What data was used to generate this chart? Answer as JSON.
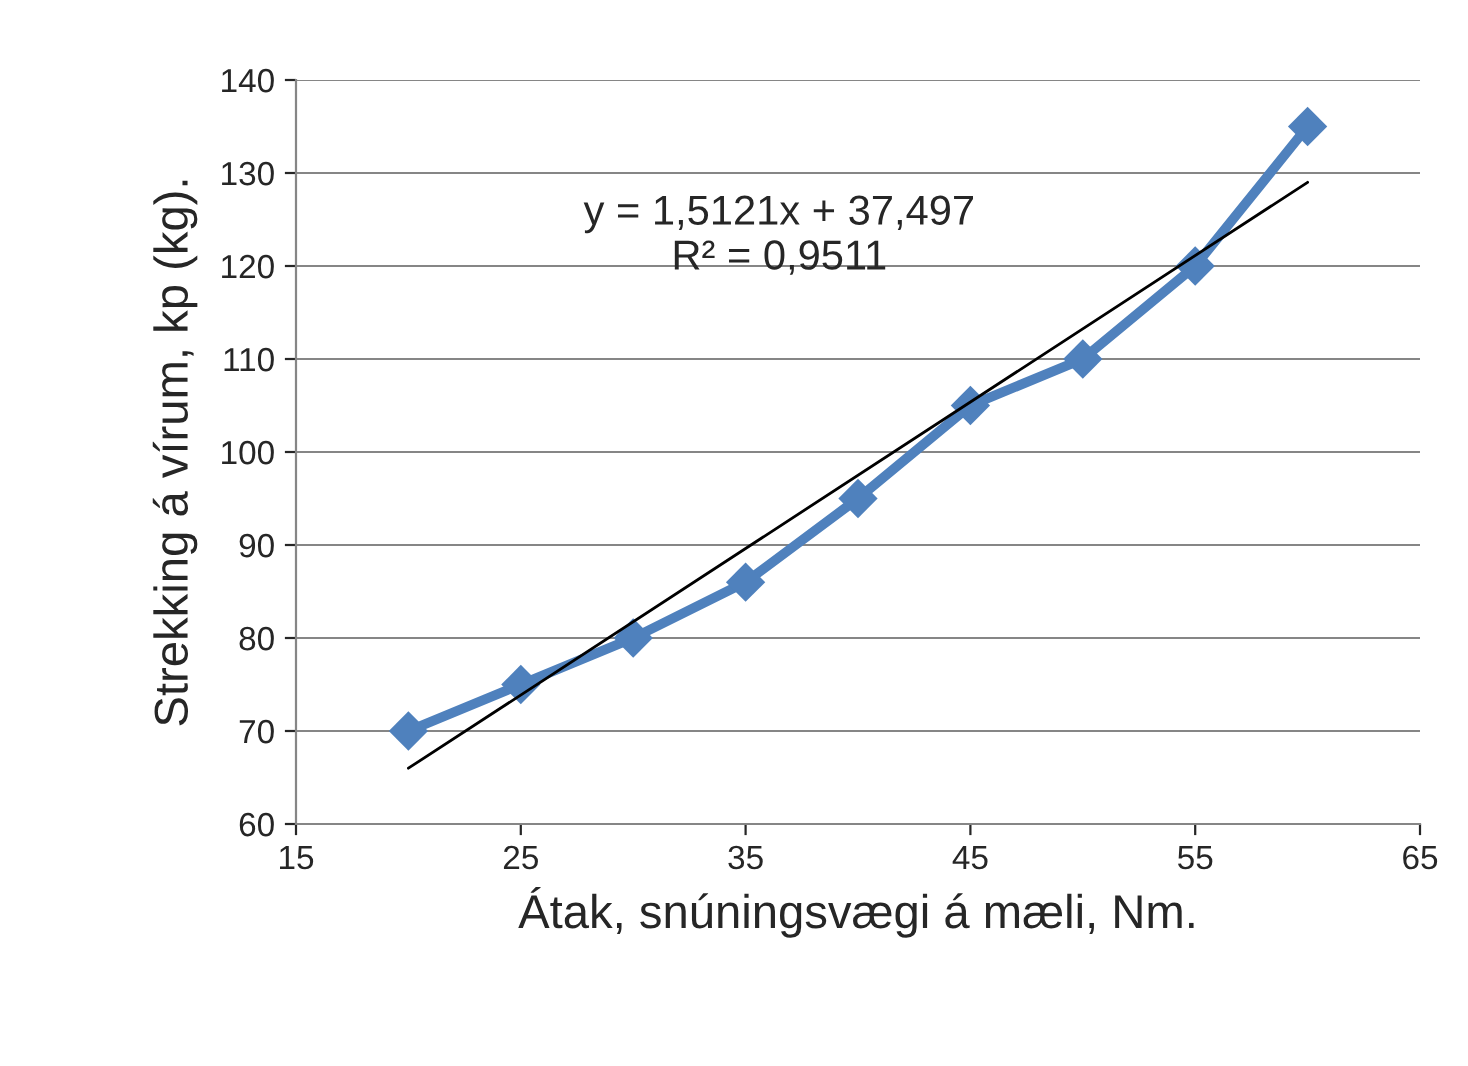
{
  "chart_data": {
    "type": "line",
    "xlabel": "Átak, snúningsvægi á mæli, Nm.",
    "ylabel": "Strekking á vírum, kp (kg).",
    "series": [
      {
        "color": "#4f81bd",
        "x": [
          20,
          25,
          30,
          35,
          40,
          45,
          50,
          55,
          60
        ],
        "values": [
          70,
          75,
          80,
          86,
          95,
          105,
          110,
          120,
          135
        ],
        "marker": "diamond",
        "line_style": "solid"
      },
      {
        "type": "line",
        "color": "#000000",
        "x": [
          20,
          60
        ],
        "values": [
          66,
          129
        ],
        "marker": "none",
        "line_style": "solid"
      }
    ],
    "annotations": [
      "y = 1,5121x + 37,497\nR² = 0,9511"
    ],
    "xlim": [
      15,
      65
    ],
    "xticks": [
      15,
      25,
      35,
      45,
      55,
      65
    ],
    "ylim": [
      60,
      140
    ],
    "yticks": [
      60,
      70,
      80,
      90,
      100,
      110,
      120,
      130,
      140
    ],
    "grid": "y",
    "legend": false
  }
}
